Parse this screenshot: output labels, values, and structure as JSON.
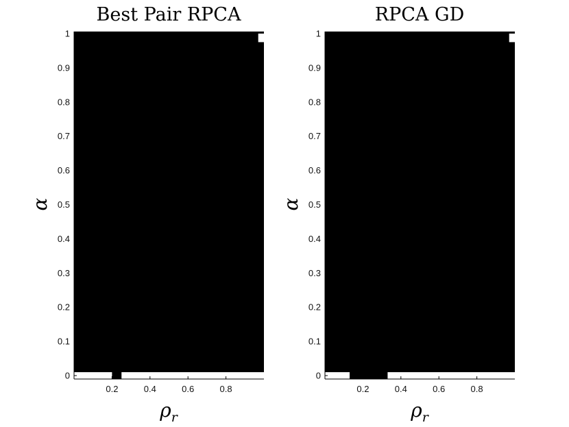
{
  "chart_data": [
    {
      "type": "heatmap",
      "title": "Best Pair RPCA",
      "xlabel": "ρ",
      "xlabel_subscript": "r",
      "ylabel": "α",
      "xlim": [
        0,
        1
      ],
      "ylim": [
        0,
        1
      ],
      "xticks": [
        0.2,
        0.4,
        0.6,
        0.8
      ],
      "yticks": [
        0,
        0.1,
        0.2,
        0.3,
        0.4,
        0.5,
        0.6,
        0.7,
        0.8,
        0.9,
        1
      ],
      "grid": false,
      "colormap": {
        "0": "#000000",
        "1": "#ffffff"
      },
      "background_value": 0,
      "regions": [
        {
          "x0": 0,
          "x1": 0.2,
          "y0": -0.01,
          "y1": 0.01,
          "value": 1
        },
        {
          "x0": 0.25,
          "x1": 1,
          "y0": -0.01,
          "y1": 0.01,
          "value": 1
        },
        {
          "x0": 0.97,
          "x1": 1,
          "y0": 0.975,
          "y1": 1,
          "value": 1
        }
      ]
    },
    {
      "type": "heatmap",
      "title": "RPCA GD",
      "xlabel": "ρ",
      "xlabel_subscript": "r",
      "ylabel": "α",
      "xlim": [
        0,
        1
      ],
      "ylim": [
        0,
        1
      ],
      "xticks": [
        0.2,
        0.4,
        0.6,
        0.8
      ],
      "yticks": [
        0,
        0.1,
        0.2,
        0.3,
        0.4,
        0.5,
        0.6,
        0.7,
        0.8,
        0.9,
        1
      ],
      "grid": false,
      "colormap": {
        "0": "#000000",
        "1": "#ffffff"
      },
      "background_value": 0,
      "regions": [
        {
          "x0": 0,
          "x1": 0.13,
          "y0": -0.01,
          "y1": 0.01,
          "value": 1
        },
        {
          "x0": 0.33,
          "x1": 1,
          "y0": -0.01,
          "y1": 0.01,
          "value": 1
        },
        {
          "x0": 0.97,
          "x1": 1,
          "y0": 0.975,
          "y1": 1,
          "value": 1
        }
      ]
    }
  ]
}
